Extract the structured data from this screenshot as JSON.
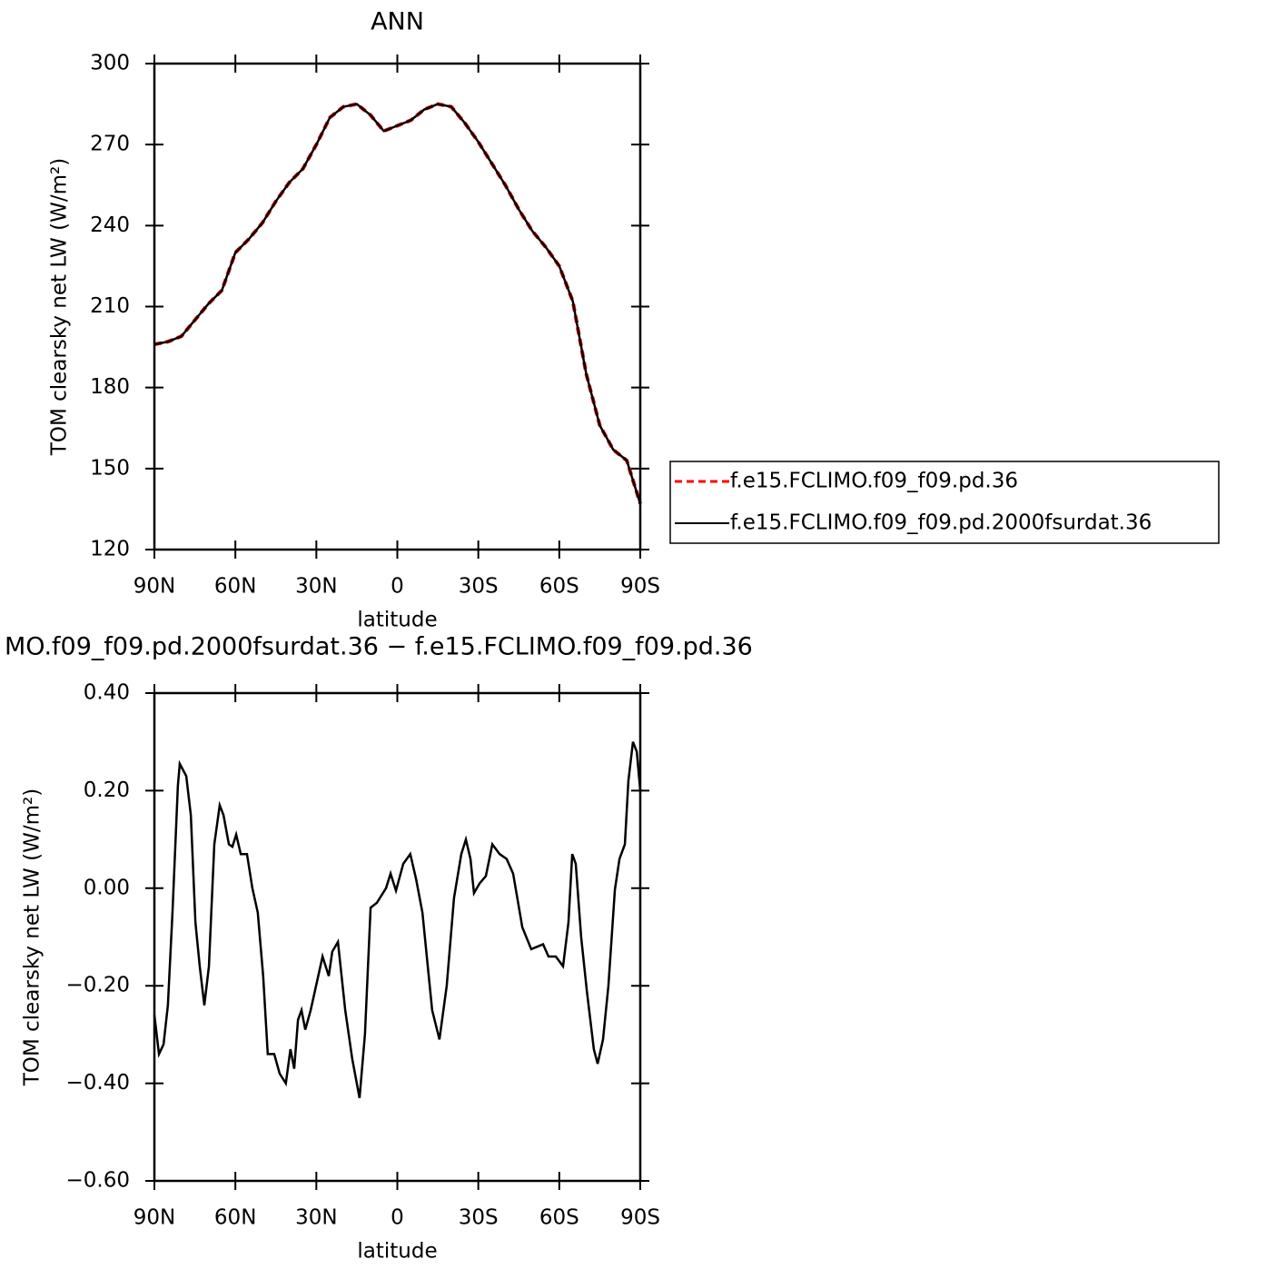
{
  "chart_data": [
    {
      "type": "line",
      "title": "ANN",
      "xlabel": "latitude",
      "ylabel": "TOM clearsky net LW (W/m²)",
      "x": [
        90,
        85,
        80,
        75,
        70,
        65,
        60,
        55,
        50,
        45,
        40,
        35,
        30,
        25,
        20,
        15,
        10,
        5,
        0,
        -5,
        -10,
        -15,
        -20,
        -25,
        -30,
        -35,
        -40,
        -45,
        -50,
        -55,
        -60,
        -65,
        -70,
        -75,
        -80,
        -85,
        -90
      ],
      "series": [
        {
          "name": "f.e15.FCLIMO.f09_f09.pd.36",
          "color": "#ff0000",
          "dashed": true,
          "values": [
            196,
            197,
            199,
            205,
            211,
            216,
            230,
            235,
            241,
            249,
            256,
            261,
            270,
            280,
            284,
            285,
            281,
            275,
            277,
            279,
            283,
            285,
            284,
            278,
            271,
            263,
            255,
            246,
            238,
            232,
            225,
            212,
            185,
            166,
            157,
            153,
            137
          ]
        },
        {
          "name": "f.e15.FCLIMO.f09_f09.pd.2000fsurdat.36",
          "color": "#000000",
          "dashed": false,
          "values": [
            196,
            197,
            199,
            205,
            211,
            216,
            230,
            235,
            241,
            249,
            256,
            261,
            270,
            280,
            284,
            285,
            281,
            275,
            277,
            279,
            283,
            285,
            284,
            278,
            271,
            263,
            255,
            246,
            238,
            232,
            225,
            212,
            185,
            166,
            157,
            153,
            137
          ]
        }
      ],
      "xlim": [
        90,
        -90
      ],
      "xticks": [
        {
          "value": 90,
          "label": "90N"
        },
        {
          "value": 60,
          "label": "60N"
        },
        {
          "value": 30,
          "label": "30N"
        },
        0,
        {
          "value": -30,
          "label": "30S"
        },
        {
          "value": -60,
          "label": "60S"
        },
        {
          "value": -90,
          "label": "90S"
        }
      ],
      "ylim": [
        120,
        300
      ],
      "yticks": [
        120,
        150,
        180,
        210,
        240,
        270,
        300
      ],
      "legend": "right"
    },
    {
      "type": "line",
      "title": "MO.f09_f09.pd.2000fsurdat.36 − f.e15.FCLIMO.f09_f09.pd.36",
      "xlabel": "latitude",
      "ylabel": "TOM clearsky net LW (W/m²)",
      "x": [
        90,
        88.3,
        86.6,
        85.0,
        83.3,
        81.3,
        80.6,
        78.2,
        76.5,
        74.8,
        73.2,
        71.5,
        69.8,
        67.8,
        65.8,
        64.4,
        62.4,
        61.1,
        59.7,
        58.0,
        55.7,
        53.7,
        51.7,
        49.7,
        48.0,
        45.6,
        43.6,
        41.3,
        39.6,
        38.2,
        36.8,
        35.5,
        34.1,
        32.1,
        30.1,
        27.7,
        25.4,
        24.1,
        22.0,
        19.3,
        16.7,
        14.0,
        12.0,
        9.9,
        7.6,
        4.2,
        2.5,
        0.5,
        -2.2,
        -4.8,
        -6.9,
        -9.3,
        -12.9,
        -15.6,
        -18.3,
        -21.0,
        -23.7,
        -25.4,
        -27.1,
        -28.4,
        -30.5,
        -32.8,
        -35.2,
        -37.9,
        -40.5,
        -42.9,
        -46.3,
        -49.6,
        -54.0,
        -56.0,
        -58.7,
        -61.4,
        -63.4,
        -64.8,
        -66.1,
        -68.1,
        -70.2,
        -72.8,
        -74.2,
        -76.2,
        -78.2,
        -80.6,
        -82.3,
        -84.3,
        -85.6,
        -87.3,
        -88.7,
        -90
      ],
      "series": [
        {
          "color": "#000000",
          "dashed": false,
          "values": [
            -0.26,
            -0.34,
            -0.32,
            -0.24,
            -0.05,
            0.21,
            0.255,
            0.23,
            0.15,
            -0.07,
            -0.16,
            -0.24,
            -0.16,
            0.09,
            0.17,
            0.15,
            0.09,
            0.085,
            0.11,
            0.07,
            0.07,
            0.0,
            -0.05,
            -0.18,
            -0.34,
            -0.34,
            -0.38,
            -0.4,
            -0.33,
            -0.37,
            -0.27,
            -0.25,
            -0.29,
            -0.25,
            -0.2,
            -0.14,
            -0.18,
            -0.13,
            -0.11,
            -0.25,
            -0.35,
            -0.43,
            -0.3,
            -0.04,
            -0.03,
            0.0,
            0.03,
            -0.005,
            0.05,
            0.07,
            0.02,
            -0.05,
            -0.25,
            -0.31,
            -0.2,
            -0.02,
            0.07,
            0.1,
            0.06,
            -0.01,
            0.01,
            0.025,
            0.09,
            0.07,
            0.06,
            0.03,
            -0.08,
            -0.125,
            -0.115,
            -0.14,
            -0.14,
            -0.16,
            -0.07,
            0.07,
            0.05,
            -0.1,
            -0.21,
            -0.33,
            -0.36,
            -0.31,
            -0.2,
            -0.003,
            0.06,
            0.09,
            0.22,
            0.3,
            0.28,
            0.2
          ]
        }
      ],
      "xlim": [
        90,
        -90
      ],
      "xticks": [
        {
          "value": 90,
          "label": "90N"
        },
        {
          "value": 60,
          "label": "60N"
        },
        {
          "value": 30,
          "label": "30N"
        },
        0,
        {
          "value": -30,
          "label": "30S"
        },
        {
          "value": -60,
          "label": "60S"
        },
        {
          "value": -90,
          "label": "90S"
        }
      ],
      "ylim": [
        -0.6,
        0.4
      ],
      "yticks": [
        {
          "value": -0.6,
          "label": "−0.60"
        },
        {
          "value": -0.4,
          "label": "−0.40"
        },
        {
          "value": -0.2,
          "label": "−0.20"
        },
        {
          "value": 0,
          "label": "0.00"
        },
        {
          "value": 0.2,
          "label": "0.20"
        },
        {
          "value": 0.4,
          "label": "0.40"
        }
      ]
    }
  ]
}
